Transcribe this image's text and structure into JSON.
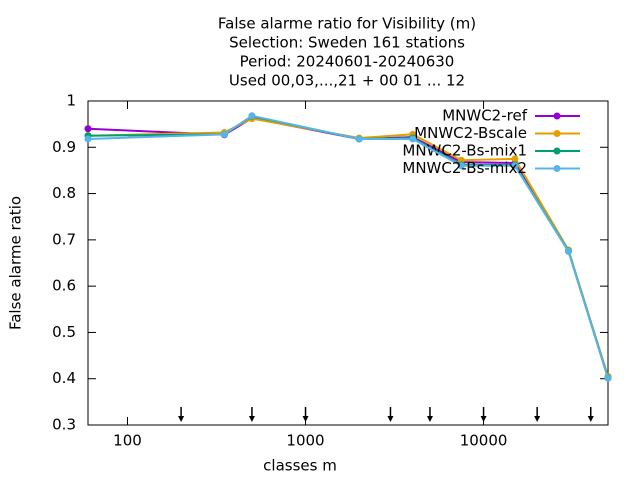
{
  "chart_data": {
    "type": "line",
    "title": [
      "False alarme ratio  for Visibility (m)",
      "Selection: Sweden    161 stations",
      "Period: 20240601-20240630",
      "Used 00,03,...,21 + 00 01 ... 12"
    ],
    "xlabel": "classes m",
    "ylabel": "False alarme ratio",
    "xscale": "log",
    "xlim": [
      60,
      50000
    ],
    "xticks": [
      100,
      1000,
      10000
    ],
    "ylim": [
      0.3,
      1
    ],
    "yticks": [
      0.3,
      0.4,
      0.5,
      0.6,
      0.7,
      0.8,
      0.9,
      1
    ],
    "legend": "top-right",
    "x": [
      60,
      350,
      500,
      2000,
      4000,
      7500,
      15000,
      30000,
      50000
    ],
    "arrows": [
      200,
      500,
      1000,
      3000,
      5000,
      10000,
      20000,
      40000
    ],
    "series": [
      {
        "name": "MNWC2-ref",
        "color": "#9400d3",
        "values": [
          0.94,
          0.927,
          0.963,
          0.918,
          0.922,
          0.868,
          0.866,
          0.676,
          0.402
        ]
      },
      {
        "name": "MNWC2-Bscale",
        "color": "#e69f00",
        "values": [
          0.925,
          0.932,
          0.962,
          0.92,
          0.928,
          0.872,
          0.875,
          0.678,
          0.405
        ]
      },
      {
        "name": "MNWC2-Bs-mix1",
        "color": "#009e73",
        "values": [
          0.925,
          0.928,
          0.967,
          0.918,
          0.92,
          0.862,
          0.862,
          0.676,
          0.402
        ]
      },
      {
        "name": "MNWC2-Bs-mix2",
        "color": "#56b4e9",
        "values": [
          0.918,
          0.928,
          0.968,
          0.918,
          0.918,
          0.86,
          0.86,
          0.675,
          0.401
        ]
      }
    ]
  }
}
